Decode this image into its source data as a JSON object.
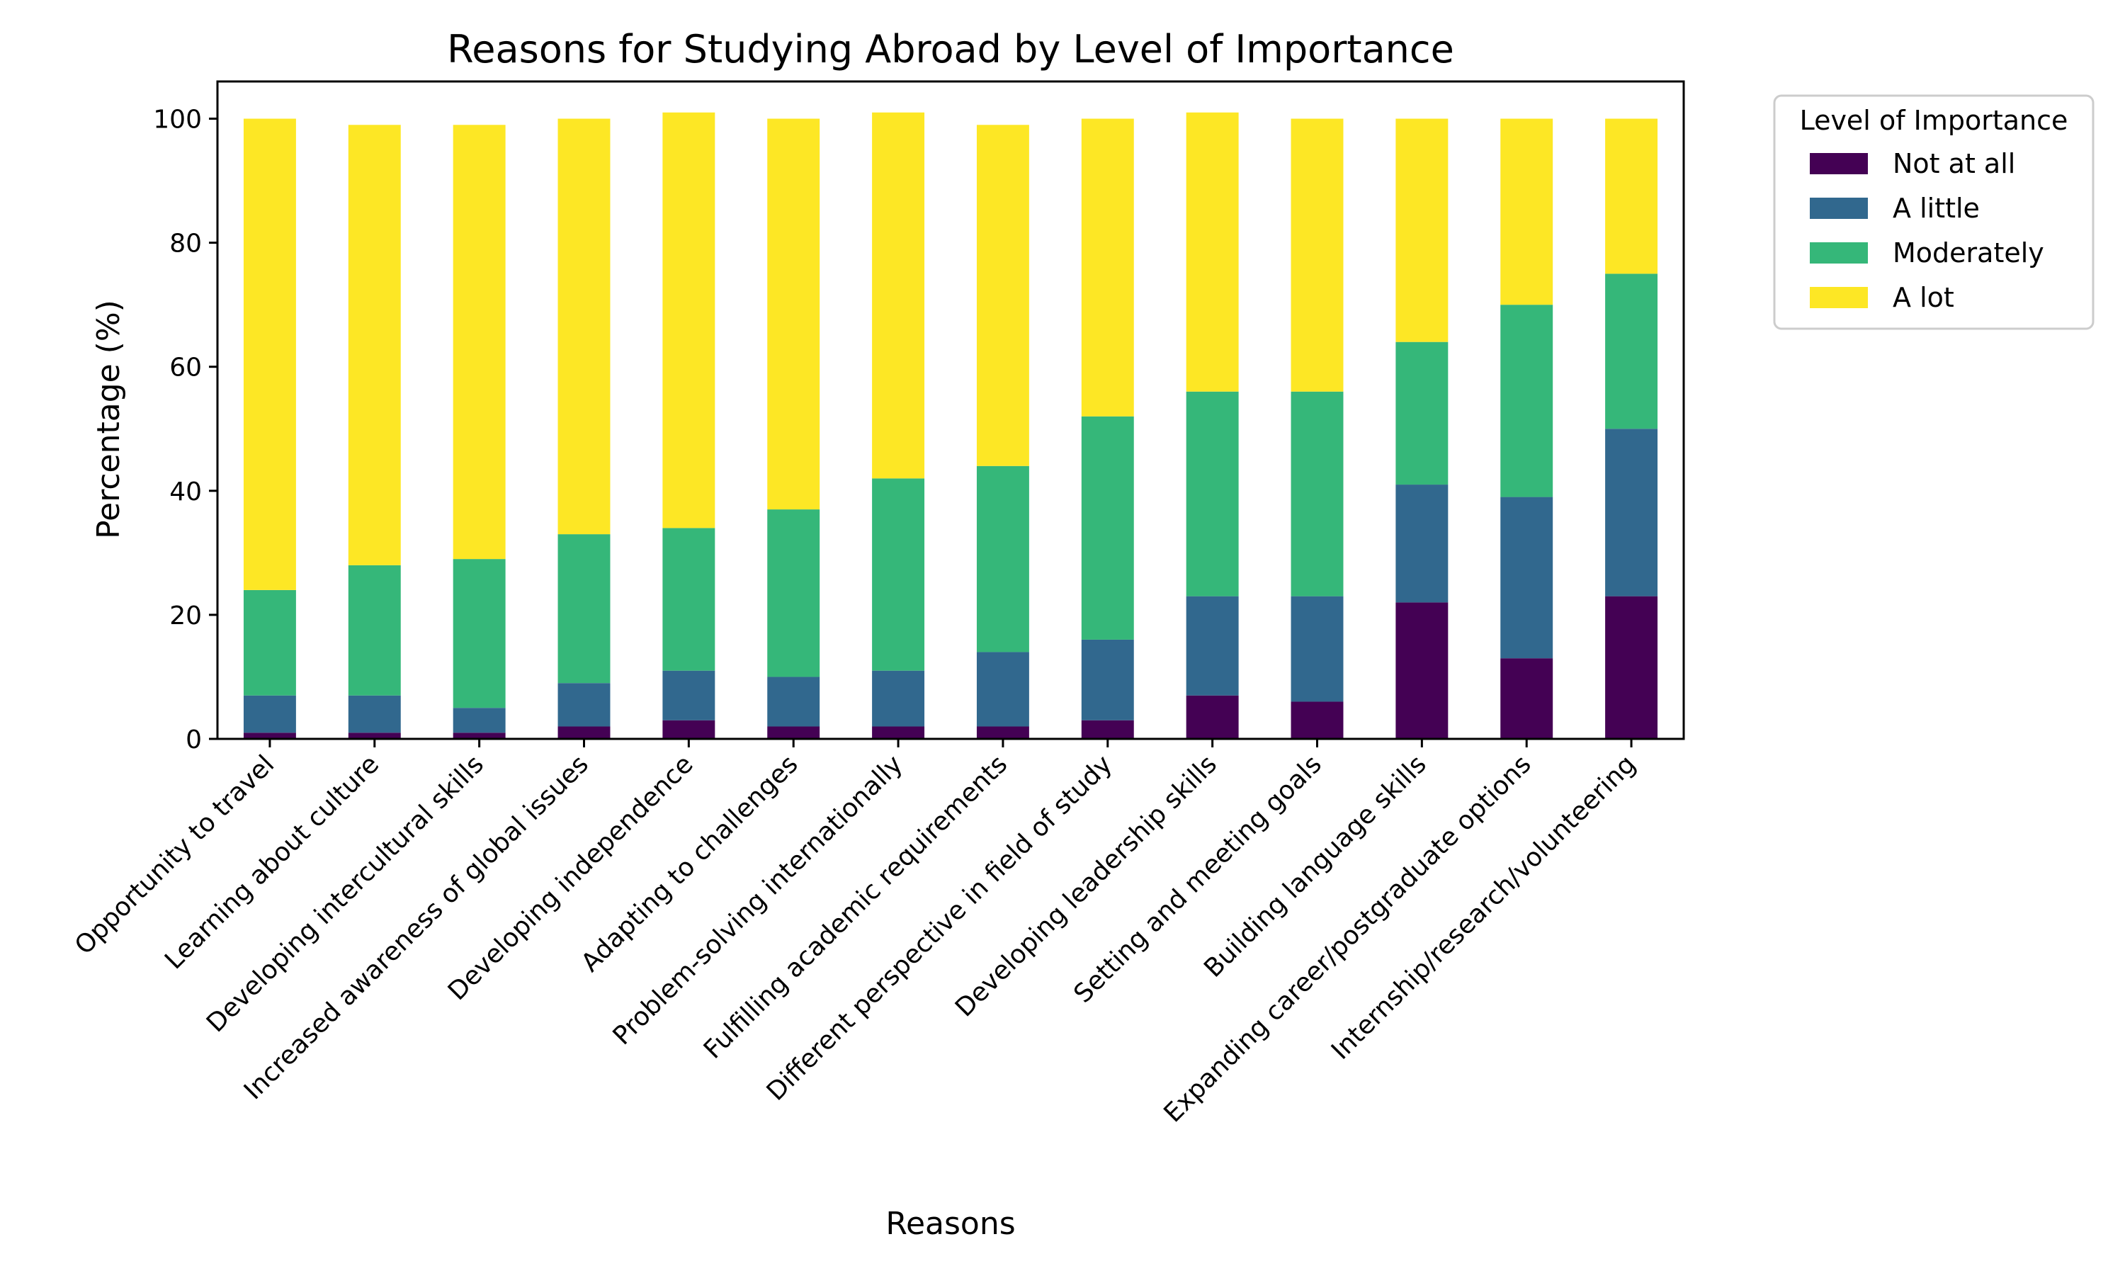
{
  "chart_data": {
    "type": "bar",
    "stacked": true,
    "title": "Reasons for Studying Abroad by Level of Importance",
    "xlabel": "Reasons",
    "ylabel": "Percentage (%)",
    "ylim": [
      0,
      106
    ],
    "yticks": [
      0,
      20,
      40,
      60,
      80,
      100
    ],
    "grid": false,
    "legend": {
      "title": "Level of Importance",
      "placement": "outside-top-right"
    },
    "categories": [
      "Opportunity to travel",
      "Learning about culture",
      "Developing intercultural skills",
      "Increased awareness of global issues",
      "Developing independence",
      "Adapting to challenges",
      "Problem-solving internationally",
      "Fulfilling academic requirements",
      "Different perspective in field of study",
      "Developing leadership skills",
      "Setting and meeting goals",
      "Building language skills",
      "Expanding career/postgraduate options",
      "Internship/research/volunteering"
    ],
    "series": [
      {
        "name": "Not at all",
        "color": "#440154",
        "values": [
          1,
          1,
          1,
          2,
          3,
          2,
          2,
          2,
          3,
          7,
          6,
          22,
          13,
          23
        ]
      },
      {
        "name": "A little",
        "color": "#31688e",
        "values": [
          6,
          6,
          4,
          7,
          8,
          8,
          9,
          12,
          13,
          16,
          17,
          19,
          26,
          27
        ]
      },
      {
        "name": "Moderately",
        "color": "#35b779",
        "values": [
          17,
          21,
          24,
          24,
          23,
          27,
          31,
          30,
          36,
          33,
          33,
          23,
          31,
          25
        ]
      },
      {
        "name": "A lot",
        "color": "#fde725",
        "values": [
          76,
          71,
          70,
          67,
          67,
          63,
          59,
          55,
          48,
          45,
          44,
          36,
          30,
          25
        ]
      }
    ]
  }
}
